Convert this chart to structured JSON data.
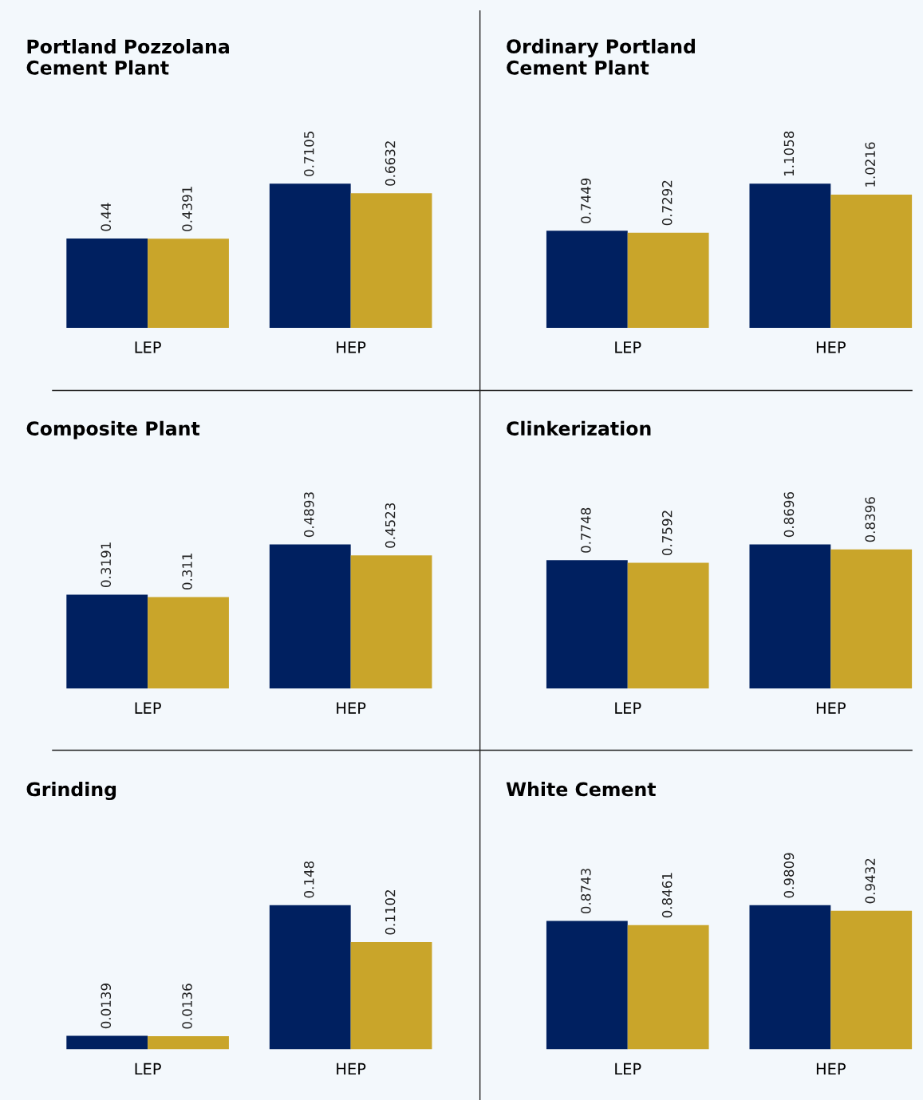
{
  "chart_data": [
    {
      "type": "bar",
      "title": "Portland Pozzolana\nCement Plant",
      "categories": [
        "LEP",
        "HEP"
      ],
      "data_labels": true,
      "legend": false,
      "grid": false,
      "tick_labels": "x",
      "series": [
        {
          "color": "#002060",
          "values": [
            0.44,
            0.7105
          ]
        },
        {
          "color": "#c9a52a",
          "values": [
            0.4391,
            0.6632
          ]
        }
      ]
    },
    {
      "type": "bar",
      "title": "Ordinary Portland\nCement Plant",
      "categories": [
        "LEP",
        "HEP"
      ],
      "data_labels": true,
      "legend": false,
      "grid": false,
      "tick_labels": "x",
      "series": [
        {
          "color": "#002060",
          "values": [
            0.7449,
            1.1058
          ]
        },
        {
          "color": "#c9a52a",
          "values": [
            0.7292,
            1.0216
          ]
        }
      ]
    },
    {
      "type": "bar",
      "title": "Composite Plant",
      "categories": [
        "LEP",
        "HEP"
      ],
      "data_labels": true,
      "legend": false,
      "grid": false,
      "tick_labels": "x",
      "series": [
        {
          "color": "#002060",
          "values": [
            0.3191,
            0.4893
          ]
        },
        {
          "color": "#c9a52a",
          "values": [
            0.311,
            0.4523
          ]
        }
      ]
    },
    {
      "type": "bar",
      "title": "Clinkerization",
      "categories": [
        "LEP",
        "HEP"
      ],
      "data_labels": true,
      "legend": false,
      "grid": false,
      "tick_labels": "x",
      "series": [
        {
          "color": "#002060",
          "values": [
            0.7748,
            0.8696
          ]
        },
        {
          "color": "#c9a52a",
          "values": [
            0.7592,
            0.8396
          ]
        }
      ]
    },
    {
      "type": "bar",
      "title": "Grinding",
      "categories": [
        "LEP",
        "HEP"
      ],
      "data_labels": true,
      "legend": false,
      "grid": false,
      "tick_labels": "x",
      "series": [
        {
          "color": "#002060",
          "values": [
            0.0139,
            0.148
          ]
        },
        {
          "color": "#c9a52a",
          "values": [
            0.0136,
            0.1102
          ]
        }
      ]
    },
    {
      "type": "bar",
      "title": "White Cement",
      "categories": [
        "LEP",
        "HEP"
      ],
      "data_labels": true,
      "legend": false,
      "grid": false,
      "tick_labels": "x",
      "series": [
        {
          "color": "#002060",
          "values": [
            0.8743,
            0.9809
          ]
        },
        {
          "color": "#c9a52a",
          "values": [
            0.8461,
            0.9432
          ]
        }
      ]
    }
  ]
}
